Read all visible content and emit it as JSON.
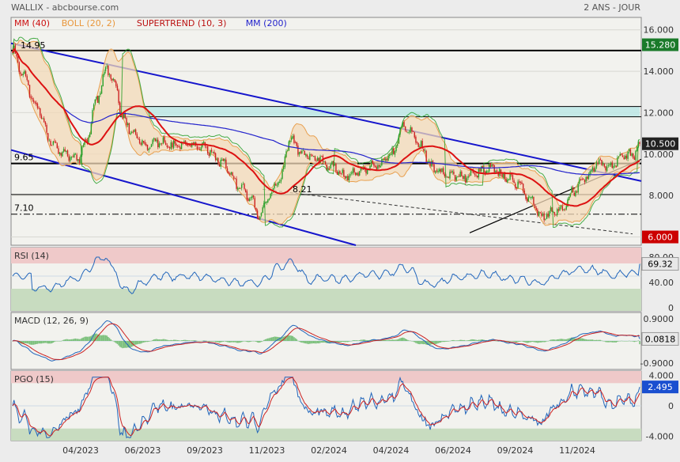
{
  "header": {
    "left": "WALLIX - abcbourse.com",
    "right": "2 ANS - JOUR"
  },
  "chart_data": [
    {
      "type": "candlestick",
      "legend": [
        {
          "label": "MM (40)",
          "color": "#cc1111"
        },
        {
          "label": "BOLL (20, 2)",
          "color": "#e8963a"
        },
        {
          "label": "SUPERTREND (10, 3)",
          "color": "#bb1111"
        },
        {
          "label": "MM (200)",
          "color": "#2222cc"
        }
      ],
      "ylim": [
        5.6,
        16.6
      ],
      "y_ticks": [
        "16.000",
        "14.000",
        "12.000",
        "10.000",
        "8.000",
        "6.000"
      ],
      "x_ticks": [
        "04/2023",
        "06/2023",
        "09/2023",
        "11/2023",
        "02/2024",
        "04/2024",
        "06/2024",
        "09/2024",
        "11/2024"
      ],
      "price_labels": [
        {
          "value": 15.28,
          "text": "15.280",
          "bg": "#1a7a2a"
        },
        {
          "value": 10.5,
          "text": "10.500",
          "bg": "#222222"
        },
        {
          "value": 6.0,
          "text": "6.000",
          "bg": "#cc0000"
        }
      ],
      "annotations": [
        {
          "text": "14.95",
          "value": 14.95
        },
        {
          "text": "9.65",
          "value": 9.65
        },
        {
          "text": "8.21",
          "value": 8.21
        },
        {
          "text": "7.10",
          "value": 7.1
        }
      ],
      "resistance_zone": [
        11.8,
        12.3
      ],
      "horizontal_lines": [
        15.0,
        12.3,
        11.8,
        9.55,
        8.05
      ],
      "dash_dot_line": 7.1
    },
    {
      "type": "line",
      "title": "RSI (14)",
      "ylim": [
        -5,
        95
      ],
      "y_ticks": [
        "80.00",
        "40.00",
        "0"
      ],
      "zones": {
        "overbought": 70,
        "oversold": 30
      },
      "last_label": "69.32",
      "last_value": 69.32
    },
    {
      "type": "line",
      "title": "MACD (12, 26, 9)",
      "ylim": [
        -1.15,
        1.15
      ],
      "y_ticks": [
        "0.9000",
        "0",
        "-0.9000"
      ],
      "last_label": "0.0818",
      "last_value": 0.0818
    },
    {
      "type": "line",
      "title": "PGO (15)",
      "ylim": [
        -4.6,
        4.6
      ],
      "y_ticks": [
        "4.000",
        "0",
        "-4.000"
      ],
      "zones": {
        "overbought": 3,
        "oversold": -3
      },
      "last_label": "2.495",
      "last_value": 2.495
    }
  ]
}
